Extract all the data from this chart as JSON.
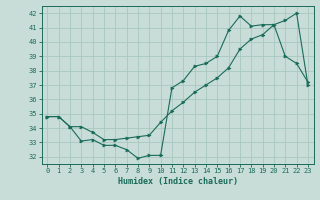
{
  "xlabel": "Humidex (Indice chaleur)",
  "bg_color": "#c8ddd8",
  "grid_color": "#a8c8c0",
  "line_color": "#1a6b5a",
  "xlim": [
    -0.5,
    23.5
  ],
  "ylim": [
    31.5,
    42.5
  ],
  "yticks": [
    32,
    33,
    34,
    35,
    36,
    37,
    38,
    39,
    40,
    41,
    42
  ],
  "xticks": [
    0,
    1,
    2,
    3,
    4,
    5,
    6,
    7,
    8,
    9,
    10,
    11,
    12,
    13,
    14,
    15,
    16,
    17,
    18,
    19,
    20,
    21,
    22,
    23
  ],
  "line1_x": [
    0,
    1,
    2,
    3,
    4,
    5,
    6,
    7,
    8,
    9,
    10,
    11,
    12,
    13,
    14,
    15,
    16,
    17,
    18,
    19,
    20,
    21,
    22,
    23
  ],
  "line1_y": [
    34.8,
    34.8,
    34.1,
    33.1,
    33.2,
    32.8,
    32.8,
    32.5,
    31.9,
    32.1,
    32.1,
    36.8,
    37.3,
    38.3,
    38.5,
    39.0,
    40.8,
    41.8,
    41.1,
    41.2,
    41.2,
    39.0,
    38.5,
    37.2
  ],
  "line2_x": [
    0,
    1,
    2,
    3,
    4,
    5,
    6,
    7,
    8,
    9,
    10,
    11,
    12,
    13,
    14,
    15,
    16,
    17,
    18,
    19,
    20,
    21,
    22,
    23
  ],
  "line2_y": [
    34.8,
    34.8,
    34.1,
    34.1,
    33.7,
    33.2,
    33.2,
    33.3,
    33.4,
    33.5,
    34.4,
    35.2,
    35.8,
    36.5,
    37.0,
    37.5,
    38.2,
    39.5,
    40.2,
    40.5,
    41.2,
    41.5,
    42.0,
    37.0
  ]
}
